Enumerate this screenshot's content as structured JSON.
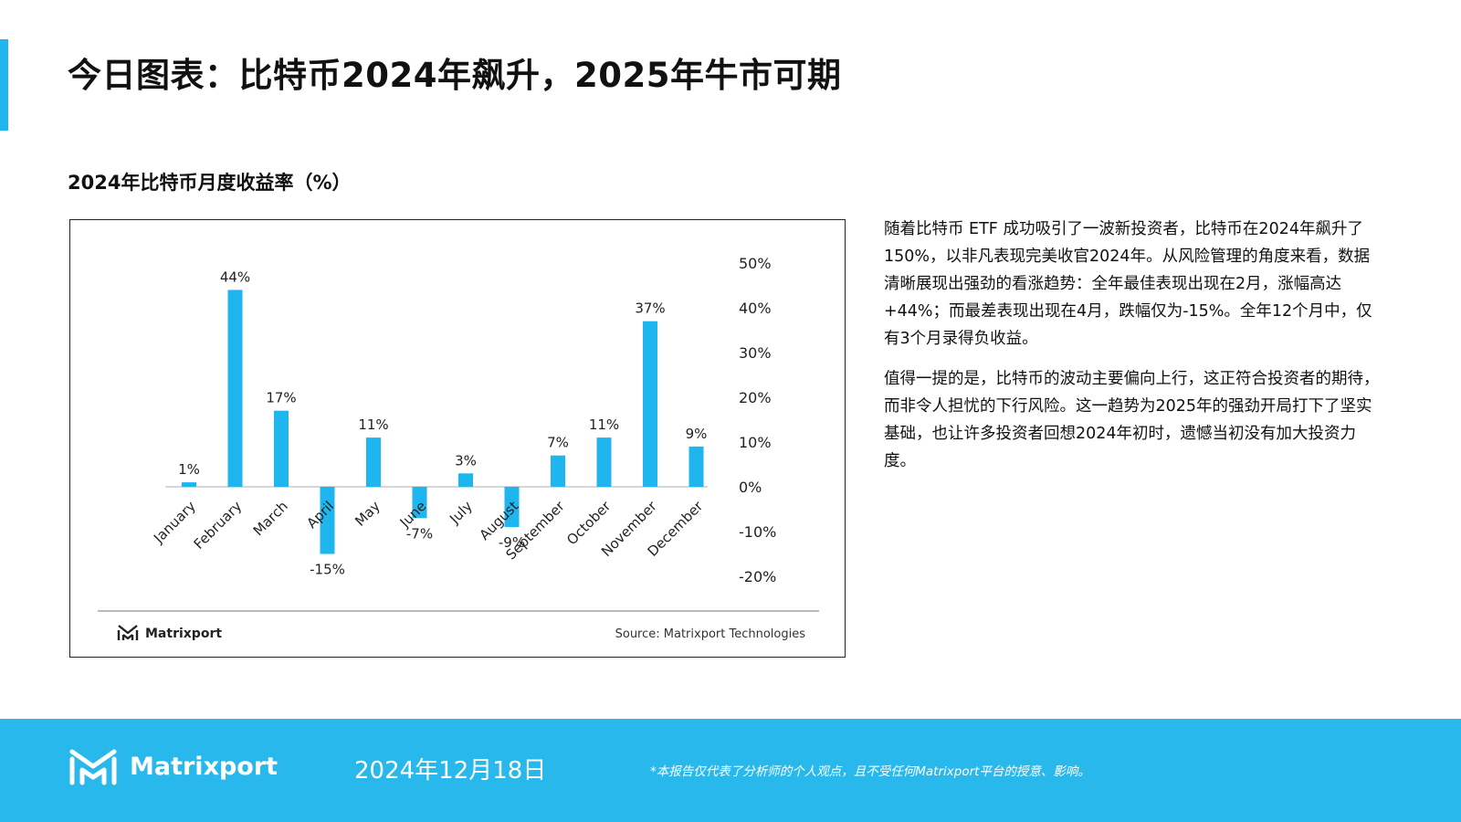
{
  "header": {
    "title": "今日图表：比特币2024年飙升，2025年牛市可期",
    "accent_color": "#1fb6ef"
  },
  "section": {
    "title": "2024年比特币月度收益率（%）"
  },
  "chart_data": {
    "type": "bar",
    "title": "2024年比特币月度收益率（%）",
    "categories": [
      "January",
      "February",
      "March",
      "April",
      "May",
      "June",
      "July",
      "August",
      "September",
      "October",
      "November",
      "December"
    ],
    "values": [
      1,
      44,
      17,
      -15,
      11,
      -7,
      3,
      -9,
      7,
      11,
      37,
      9
    ],
    "data_labels": [
      "1%",
      "44%",
      "17%",
      "-15%",
      "11%",
      "-7%",
      "3%",
      "-9%",
      "7%",
      "11%",
      "37%",
      "9%"
    ],
    "yticks": [
      50,
      40,
      30,
      20,
      10,
      0,
      -10,
      -20
    ],
    "ytick_labels": [
      "50%",
      "40%",
      "30%",
      "20%",
      "10%",
      "0%",
      "-10%",
      "-20%"
    ],
    "ylim": [
      -20,
      50
    ],
    "y_axis_side": "right",
    "xlabel": "",
    "ylabel": "",
    "grid": false,
    "bar_color": "#1fb6ef",
    "brand": "Matrixport",
    "source": "Source: Matrixport Technologies"
  },
  "body": {
    "paragraphs": [
      "随着比特币 ETF 成功吸引了一波新投资者，比特币在2024年飙升了150%，以非凡表现完美收官2024年。从风险管理的角度来看，数据清晰展现出强劲的看涨趋势：全年最佳表现出现在2月，涨幅高达+44%；而最差表现出现在4月，跌幅仅为-15%。全年12个月中，仅有3个月录得负收益。",
      "值得一提的是，比特币的波动主要偏向上行，这正符合投资者的期待，而非令人担忧的下行风险。这一趋势为2025年的强劲开局打下了坚实基础，也让许多投资者回想2024年初时，遗憾当初没有加大投资力度。"
    ]
  },
  "footer": {
    "brand": "Matrixport",
    "date": "2024年12月18日",
    "disclaimer": "*本报告仅代表了分析师的个人观点，且不受任何Matrixport平台的授意、影响。",
    "background": "#29b8ec"
  }
}
